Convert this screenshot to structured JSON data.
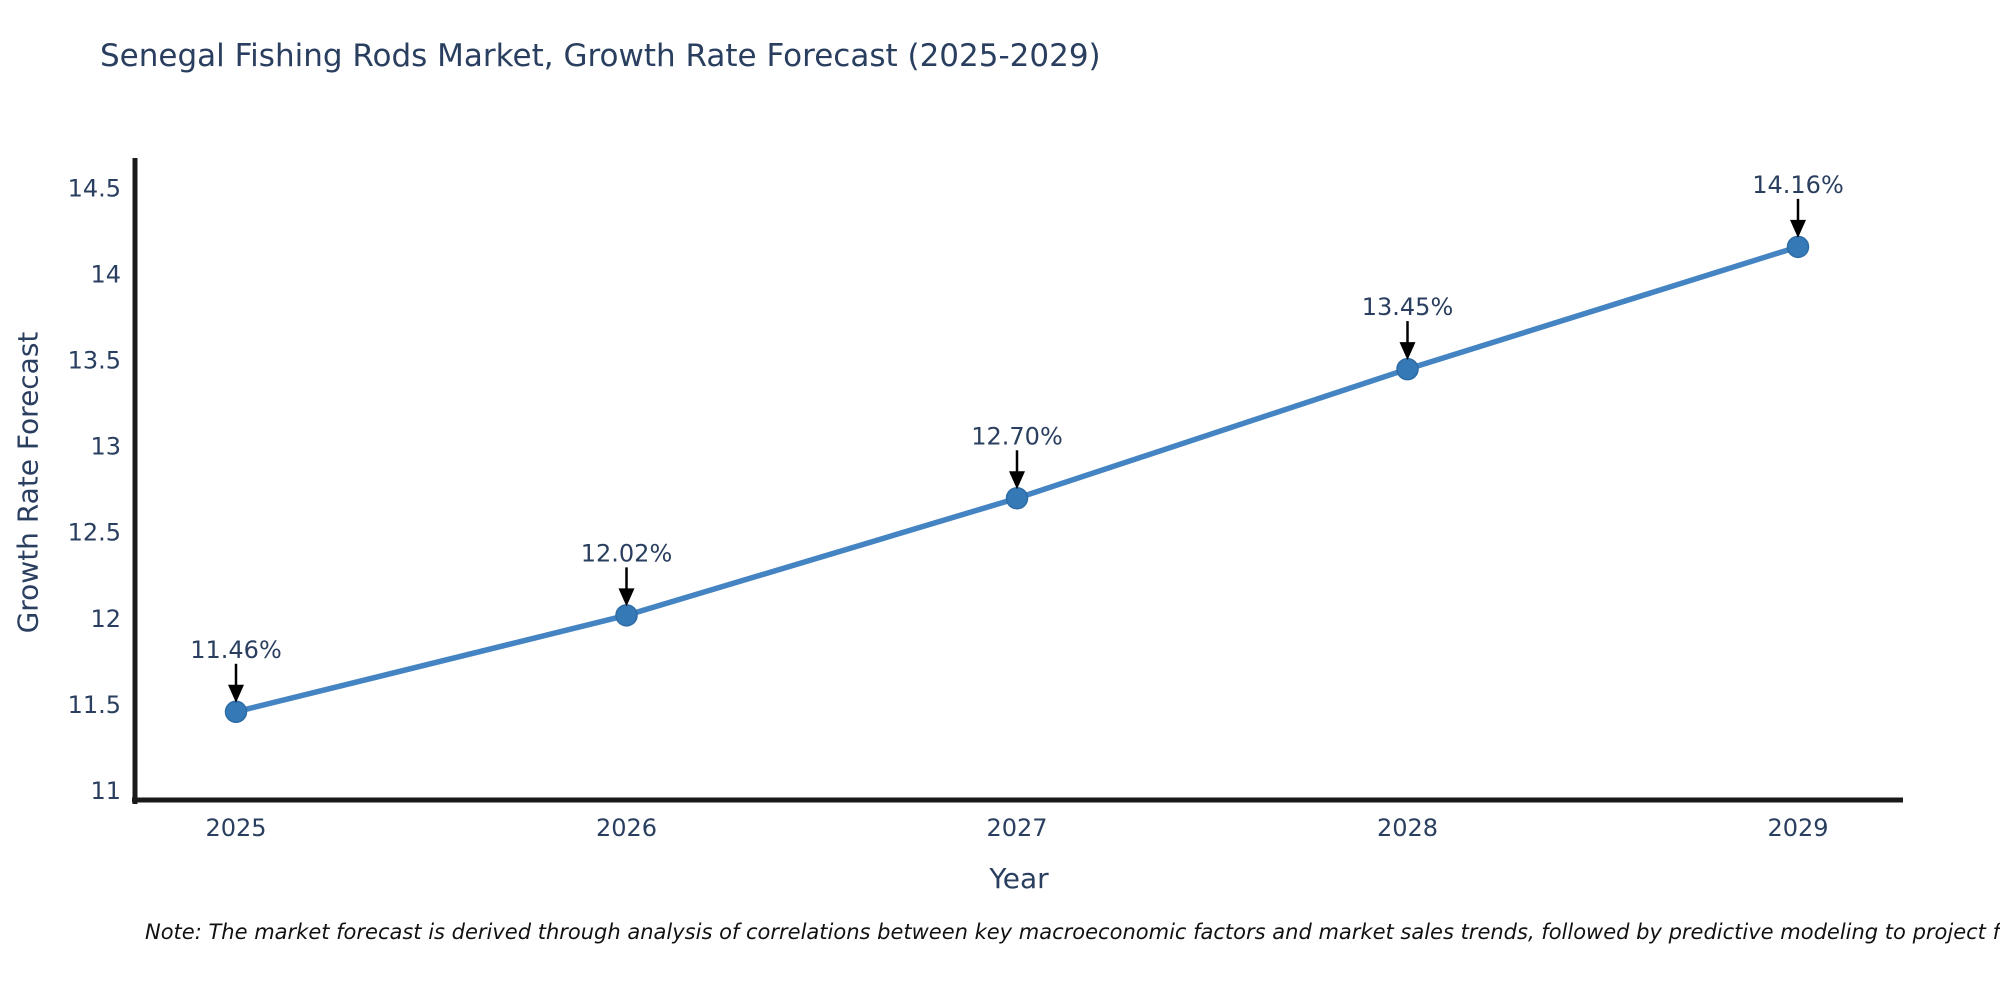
{
  "note": {
    "text": "Note: The market forecast is derived through analysis of correlations between key macroeconomic factors and market sales trends, followed by predictive modeling to project future sal"
  },
  "chart_data": {
    "type": "line",
    "title": "Senegal Fishing Rods Market, Growth Rate Forecast (2025-2029)",
    "xlabel": "Year",
    "ylabel": "Growth Rate Forecast",
    "x": [
      2025,
      2026,
      2027,
      2028,
      2029
    ],
    "y": [
      11.46,
      12.02,
      12.7,
      13.45,
      14.16
    ],
    "point_labels": [
      "11.46%",
      "12.02%",
      "12.70%",
      "13.45%",
      "14.16%"
    ],
    "xticks": [
      "2025",
      "2026",
      "2027",
      "2028",
      "2029"
    ],
    "yticks": [
      "11",
      "11.5",
      "12",
      "12.5",
      "13",
      "13.5",
      "14",
      "14.5"
    ],
    "ytick_values": [
      11,
      11.5,
      12,
      12.5,
      13,
      13.5,
      14,
      14.5
    ],
    "ylim": [
      11,
      14.5
    ],
    "grid": false,
    "legend": "none",
    "colors": {
      "line": "#4484c2",
      "marker": "#3679b7",
      "marker_edge": "#2e6ca6",
      "axis_line": "#1a1a1a",
      "annotation_arrow": "#000000",
      "text": "#2a3f5f",
      "background": "#ffffff"
    }
  }
}
